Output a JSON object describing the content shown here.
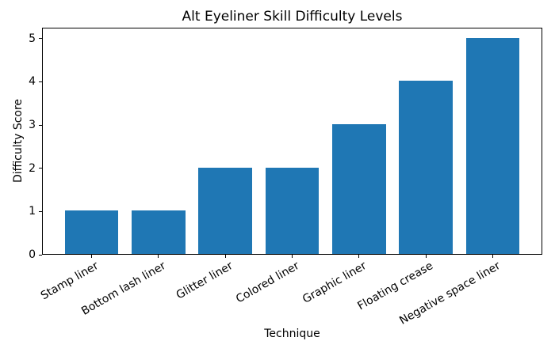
{
  "figure": {
    "background": "#ffffff"
  },
  "chart_data": {
    "type": "bar",
    "title": "Alt Eyeliner Skill Difficulty Levels",
    "xlabel": "Technique",
    "ylabel": "Difficulty Score",
    "categories": [
      "Stamp liner",
      "Bottom lash liner",
      "Glitter liner",
      "Colored liner",
      "Graphic liner",
      "Floating crease",
      "Negative space liner"
    ],
    "values": [
      1,
      1,
      2,
      2,
      3,
      4,
      5
    ],
    "ylim": [
      0,
      5.25
    ],
    "yticks": [
      0,
      1,
      2,
      3,
      4,
      5
    ],
    "xlim": [
      -0.74,
      6.74
    ],
    "bar_width_units": 0.8,
    "bar_color": "#1f77b4",
    "axis_color": "#000000",
    "text_color": "#000000",
    "grid": false,
    "legend_position": "none",
    "x_tick_rotation_deg": 30
  }
}
